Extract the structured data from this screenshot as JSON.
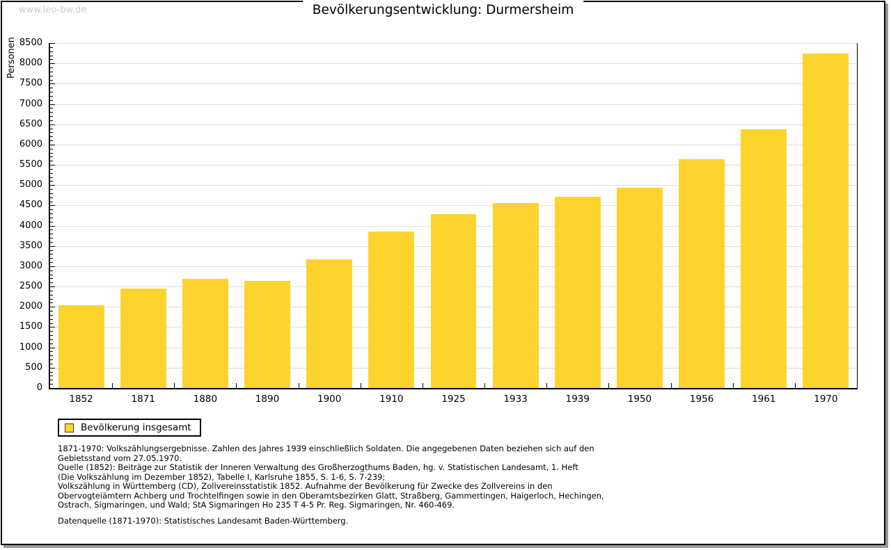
{
  "watermark": "www.leo-bw.de",
  "title": "Bevölkerungsentwicklung: Durmersheim",
  "legend": {
    "label": "Bevölkerung insgesamt",
    "swatch_color": "#FCD42D"
  },
  "footnote": "1871-1970: Volkszählungsergebnisse. Zahlen des Jahres 1939 einschließlich Soldaten. Die angegebenen Daten beziehen sich auf den\nGebietsstand vom 27.05.1970.\nQuelle (1852): Beiträge zur Statistik der Inneren Verwaltung des Großherzogthums Baden, hg. v. Statistischen Landesamt, 1. Heft\n(Die Volkszählung im Dezember 1852), Tabelle I, Karlsruhe 1855, S. 1-6, S. 7-239;\nVolkszählung in Württemberg (CD), Zollvereinsstatistik 1852. Aufnahme der Bevölkerung für Zwecke des Zollvereins in den\nObervogteiämtern Achberg und Trochtelfingen sowie in den Oberamtsbezirken Glatt, Straßberg, Gammertingen, Haigerloch, Hechingen,\nOstrach, Sigmaringen, und Wald; StA Sigmaringen Ho 235 T 4-5 Pr. Reg. Sigmaringen, Nr. 460-469.",
  "datasource": "Datenquelle (1871-1970): Statistisches Landesamt Baden-Württemberg.",
  "chart_data": {
    "type": "bar",
    "title": "Bevölkerungsentwicklung: Durmersheim",
    "xlabel": "",
    "ylabel": "Personen",
    "categories": [
      "1852",
      "1871",
      "1880",
      "1890",
      "1900",
      "1910",
      "1925",
      "1933",
      "1939",
      "1950",
      "1956",
      "1961",
      "1970"
    ],
    "values": [
      2045,
      2455,
      2695,
      2640,
      3175,
      3850,
      4290,
      4560,
      4705,
      4940,
      5640,
      6380,
      8235
    ],
    "series_name": "Bevölkerung insgesamt",
    "ylim": [
      0,
      8500
    ],
    "ytick_step": 500,
    "minor_tick_step": 100,
    "grid": true,
    "legend_position": "bottom-left",
    "bar_color": "#FCD42D"
  },
  "colors": {
    "bar": "#FCD42D",
    "grid": "#dddddd",
    "axis": "#000000",
    "watermark": "#cccccc",
    "shadow": "#9a9a9a"
  }
}
